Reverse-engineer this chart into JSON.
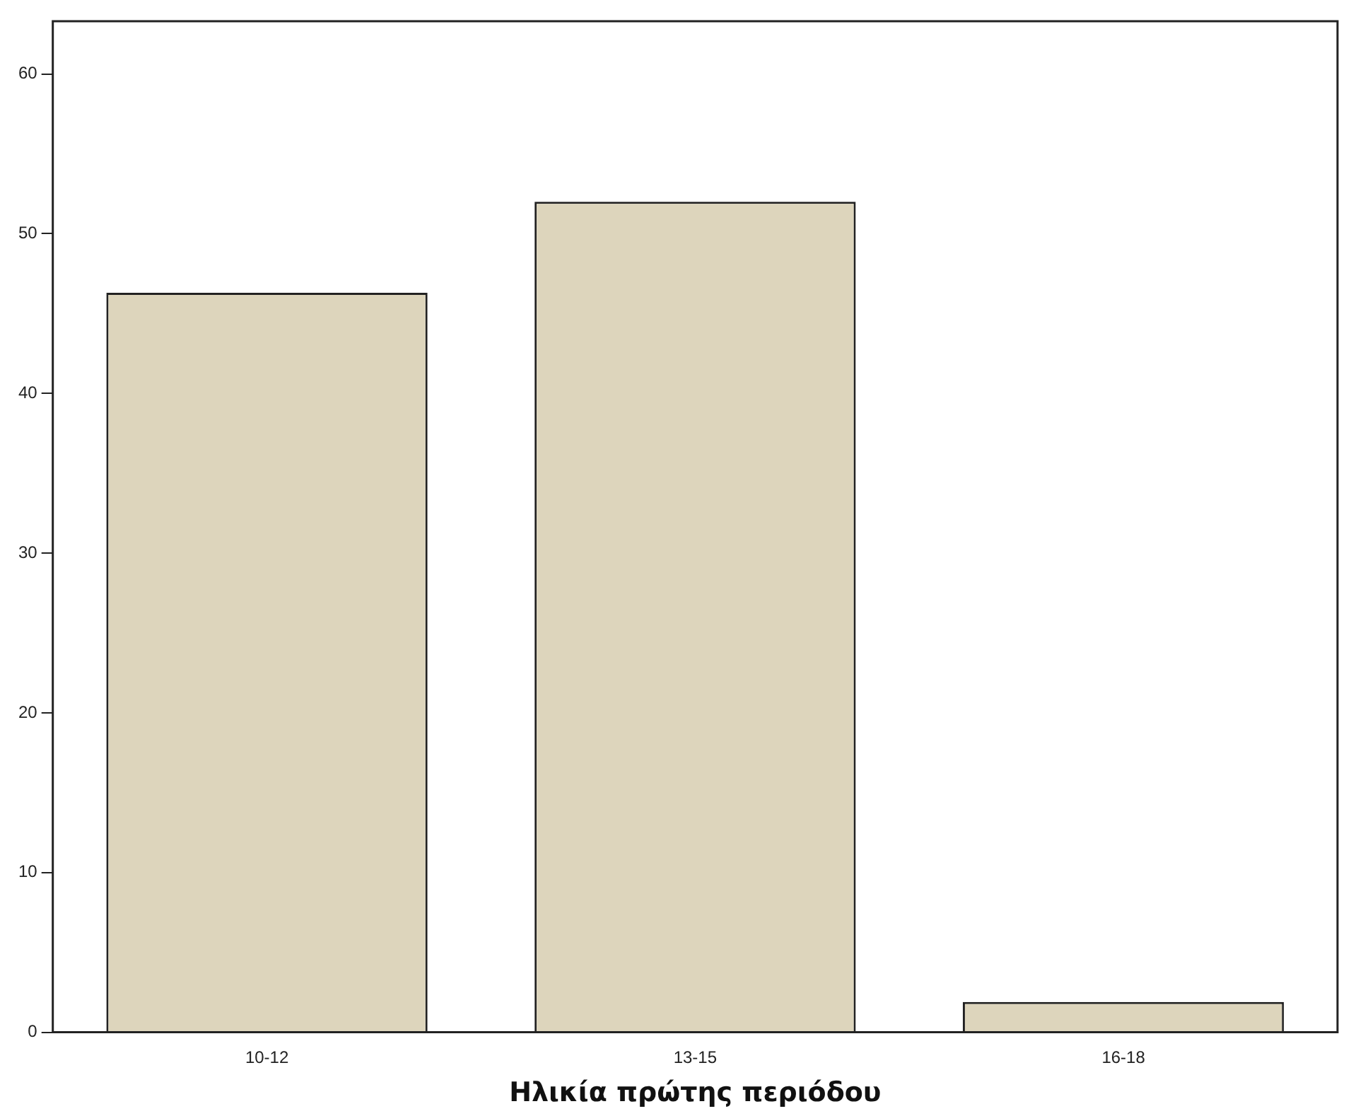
{
  "chart_data": {
    "type": "bar",
    "xlabel": "Ηλικία πρώτης περιόδου",
    "categories": [
      "10-12",
      "13-15",
      "16-18"
    ],
    "values": [
      46.3,
      52,
      1.9
    ],
    "color": "#ddd5bc",
    "ylim": [
      0,
      63.3
    ],
    "yticks": [
      0,
      10,
      20,
      30,
      40,
      50,
      60
    ],
    "grid": false,
    "legend": false
  }
}
